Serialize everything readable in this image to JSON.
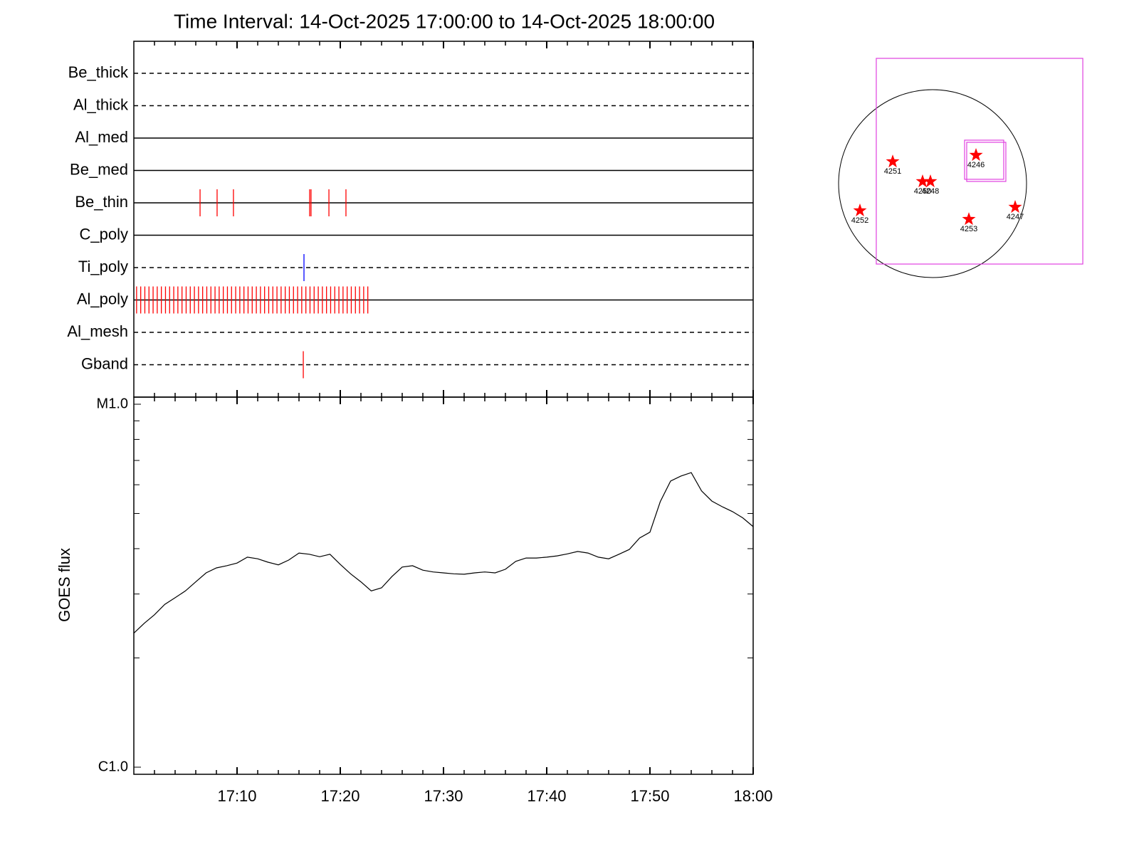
{
  "chart_data": [
    {
      "type": "events",
      "title": "Time Interval: 14-Oct-2025 17:00:00 to 14-Oct-2025 18:00:00",
      "xlim": [
        "17:00",
        "18:00"
      ],
      "channels": [
        {
          "name": "Be_thick",
          "line": "dashed",
          "color": "#ff0000",
          "events": []
        },
        {
          "name": "Al_thick",
          "line": "dashed",
          "color": "#ff0000",
          "events": []
        },
        {
          "name": "Al_med",
          "line": "solid",
          "color": "#ff0000",
          "events": []
        },
        {
          "name": "Be_med",
          "line": "solid",
          "color": "#ff0000",
          "events": []
        },
        {
          "name": "Be_thin",
          "line": "solid",
          "color": "#ff0000",
          "events": [
            "17:06:25",
            "17:08:04",
            "17:09:39",
            "17:17:02",
            "17:17:10",
            "17:18:54",
            "17:20:33"
          ]
        },
        {
          "name": "C_poly",
          "line": "solid",
          "color": "#ff0000",
          "events": []
        },
        {
          "name": "Ti_poly",
          "line": "dashed",
          "color": "#0000ff",
          "events": [
            "17:16:29"
          ]
        },
        {
          "name": "Al_poly",
          "line": "solid",
          "color": "#ff0000",
          "events": [
            "17:00:16",
            "17:00:40",
            "17:01:04",
            "17:01:28",
            "17:01:52",
            "17:02:16",
            "17:02:40",
            "17:03:04",
            "17:03:28",
            "17:03:52",
            "17:04:16",
            "17:04:40",
            "17:05:04",
            "17:05:28",
            "17:05:52",
            "17:06:16",
            "17:06:40",
            "17:07:04",
            "17:07:28",
            "17:07:52",
            "17:08:16",
            "17:08:40",
            "17:09:04",
            "17:09:28",
            "17:09:52",
            "17:10:16",
            "17:10:40",
            "17:11:04",
            "17:11:28",
            "17:11:52",
            "17:12:16",
            "17:12:40",
            "17:13:04",
            "17:13:28",
            "17:13:52",
            "17:14:16",
            "17:14:40",
            "17:15:04",
            "17:15:28",
            "17:15:52",
            "17:16:16",
            "17:16:40",
            "17:17:04",
            "17:17:28",
            "17:17:52",
            "17:18:16",
            "17:18:40",
            "17:19:04",
            "17:19:28",
            "17:19:52",
            "17:20:16",
            "17:20:40",
            "17:21:04",
            "17:21:28",
            "17:21:52",
            "17:22:16",
            "17:22:40"
          ]
        },
        {
          "name": "Al_mesh",
          "line": "dashed",
          "color": "#ff0000",
          "events": []
        },
        {
          "name": "Gband",
          "line": "dashed",
          "color": "#ff0000",
          "events": [
            "17:16:25"
          ]
        }
      ]
    },
    {
      "type": "line",
      "ylabel": "GOES flux",
      "log_y": true,
      "xlim": [
        "17:00",
        "18:00"
      ],
      "xticks": [
        "17:10",
        "17:20",
        "17:30",
        "17:40",
        "17:50",
        "18:00"
      ],
      "xminor": [
        "17:02",
        "17:04",
        "17:06",
        "17:08",
        "17:12",
        "17:14",
        "17:16",
        "17:18",
        "17:22",
        "17:24",
        "17:26",
        "17:28",
        "17:32",
        "17:34",
        "17:36",
        "17:38",
        "17:42",
        "17:44",
        "17:46",
        "17:48",
        "17:52",
        "17:54",
        "17:56",
        "17:58"
      ],
      "ylim": [
        1e-06,
        1e-05
      ],
      "yticks": [
        {
          "value": 1e-06,
          "label": "C1.0"
        },
        {
          "value": 1e-05,
          "label": "M1.0"
        }
      ],
      "yminor": [
        2e-06,
        3e-06,
        4e-06,
        5e-06,
        6e-06,
        7e-06,
        8e-06,
        9e-06
      ],
      "x": [
        "17:00",
        "17:01",
        "17:02",
        "17:03",
        "17:04",
        "17:05",
        "17:06",
        "17:07",
        "17:08",
        "17:09",
        "17:10",
        "17:11",
        "17:12",
        "17:13",
        "17:14",
        "17:15",
        "17:16",
        "17:17",
        "17:18",
        "17:19",
        "17:20",
        "17:21",
        "17:22",
        "17:23",
        "17:24",
        "17:25",
        "17:26",
        "17:27",
        "17:28",
        "17:29",
        "17:30",
        "17:31",
        "17:32",
        "17:33",
        "17:34",
        "17:35",
        "17:36",
        "17:37",
        "17:38",
        "17:39",
        "17:40",
        "17:41",
        "17:42",
        "17:43",
        "17:44",
        "17:45",
        "17:46",
        "17:47",
        "17:48",
        "17:49",
        "17:50",
        "17:51",
        "17:52",
        "17:53",
        "17:54",
        "17:55",
        "17:56",
        "17:57",
        "17:58",
        "17:59",
        "18:00"
      ],
      "series": [
        {
          "color": "#000000",
          "values": [
            2.34e-06,
            2.49e-06,
            2.63e-06,
            2.81e-06,
            2.93e-06,
            3.06e-06,
            3.24e-06,
            3.43e-06,
            3.54e-06,
            3.59e-06,
            3.65e-06,
            3.79e-06,
            3.75e-06,
            3.67e-06,
            3.61e-06,
            3.72e-06,
            3.89e-06,
            3.86e-06,
            3.8e-06,
            3.86e-06,
            3.62e-06,
            3.41e-06,
            3.24e-06,
            3.06e-06,
            3.12e-06,
            3.35e-06,
            3.56e-06,
            3.59e-06,
            3.49e-06,
            3.45e-06,
            3.43e-06,
            3.41e-06,
            3.4e-06,
            3.43e-06,
            3.45e-06,
            3.43e-06,
            3.51e-06,
            3.69e-06,
            3.77e-06,
            3.77e-06,
            3.79e-06,
            3.82e-06,
            3.87e-06,
            3.93e-06,
            3.89e-06,
            3.79e-06,
            3.75e-06,
            3.86e-06,
            3.98e-06,
            4.28e-06,
            4.44e-06,
            5.39e-06,
            6.14e-06,
            6.34e-06,
            6.48e-06,
            5.77e-06,
            5.41e-06,
            5.22e-06,
            5.06e-06,
            4.86e-06,
            4.6e-06
          ]
        }
      ]
    },
    {
      "type": "map",
      "xlim": [
        -960,
        960
      ],
      "ylim": [
        -960,
        960
      ],
      "box_color": "#e040e0",
      "marker_color": "#ff0000",
      "boxes": [
        {
          "x": [
            -575,
            1535
          ],
          "y": [
            -822,
            1280
          ]
        },
        {
          "x": [
            327,
            727
          ],
          "y": [
            44,
            444
          ]
        }
      ],
      "regions": [
        {
          "label": "4251",
          "x": -407,
          "y": 225
        },
        {
          "label": "4250",
          "x": -102,
          "y": 22
        },
        {
          "label": "4248",
          "x": -22,
          "y": 22
        },
        {
          "label": "4246",
          "x": 444,
          "y": 291
        },
        {
          "label": "4252",
          "x": -742,
          "y": -276
        },
        {
          "label": "4253",
          "x": 371,
          "y": -364
        },
        {
          "label": "4247",
          "x": 844,
          "y": -240
        }
      ]
    }
  ]
}
